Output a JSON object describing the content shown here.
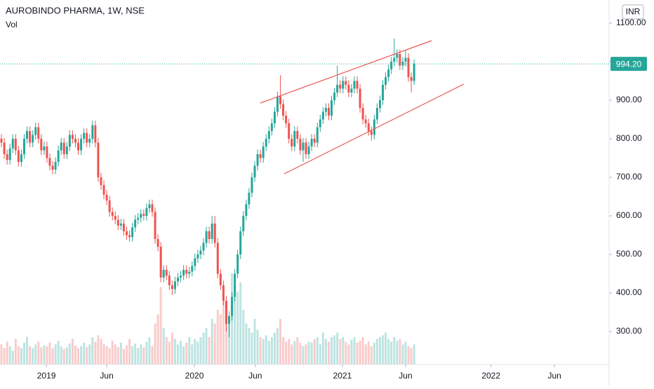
{
  "chart_data": {
    "type": "candlestick",
    "title": "AUROBINDO PHARMA, 1W, NSE",
    "subtitle": "Vol",
    "currency": "INR",
    "up_color": "#26a69a",
    "down_color": "#ef5350",
    "xlim": [
      -0.5,
      213.5
    ],
    "xticks": [
      {
        "value": 15.8,
        "label": "2019"
      },
      {
        "value": 37,
        "label": "Jun"
      },
      {
        "value": 67.8,
        "label": "2020"
      },
      {
        "value": 89.2,
        "label": "Jun"
      },
      {
        "value": 119.8,
        "label": "2021"
      },
      {
        "value": 142,
        "label": "Jun"
      },
      {
        "value": 172,
        "label": "2022"
      },
      {
        "value": 194.3,
        "label": "Jun"
      }
    ],
    "ylim": [
      214.5,
      1160
    ],
    "yticks": [
      {
        "value": 300,
        "label": "300.00"
      },
      {
        "value": 400,
        "label": "400.00"
      },
      {
        "value": 500,
        "label": "500.00"
      },
      {
        "value": 600,
        "label": "600.00"
      },
      {
        "value": 700,
        "label": "700.00"
      },
      {
        "value": 800,
        "label": "800.00"
      },
      {
        "value": 900,
        "label": "900.00"
      },
      {
        "value": 1000,
        "label": "1000.00"
      },
      {
        "value": 1100,
        "label": "1100.00"
      }
    ],
    "volume_lim": [
      0,
      100
    ],
    "last_label": "994.20",
    "x": [
      0,
      1,
      2,
      3,
      4,
      5,
      6,
      7,
      8,
      9,
      10,
      11,
      12,
      13,
      14,
      15,
      16,
      17,
      18,
      19,
      20,
      21,
      22,
      23,
      24,
      25,
      26,
      27,
      28,
      29,
      30,
      31,
      32,
      33,
      34,
      35,
      36,
      37,
      38,
      39,
      40,
      41,
      42,
      43,
      44,
      45,
      46,
      47,
      48,
      49,
      50,
      51,
      52,
      53,
      54,
      55,
      56,
      57,
      58,
      59,
      60,
      61,
      62,
      63,
      64,
      65,
      66,
      67,
      68,
      69,
      70,
      71,
      72,
      73,
      74,
      75,
      76,
      77,
      78,
      79,
      80,
      81,
      82,
      83,
      84,
      85,
      86,
      87,
      88,
      89,
      90,
      91,
      92,
      93,
      94,
      95,
      96,
      97,
      98,
      99,
      100,
      101,
      102,
      103,
      104,
      105,
      106,
      107,
      108,
      109,
      110,
      111,
      112,
      113,
      114,
      115,
      116,
      117,
      118,
      119,
      120,
      121,
      122,
      123,
      124,
      125,
      126,
      127,
      128,
      129,
      130,
      131,
      132,
      133,
      134,
      135,
      136,
      137,
      138,
      139,
      140,
      141,
      142,
      143,
      144,
      145
    ],
    "open": [
      800,
      790,
      760,
      745,
      775,
      800,
      770,
      740,
      760,
      800,
      820,
      790,
      810,
      830,
      800,
      770,
      780,
      750,
      730,
      720,
      740,
      770,
      790,
      760,
      780,
      810,
      800,
      790,
      770,
      800,
      815,
      790,
      800,
      835,
      790,
      700,
      680,
      655,
      640,
      610,
      600,
      590,
      575,
      580,
      560,
      550,
      545,
      570,
      590,
      595,
      605,
      600,
      620,
      630,
      610,
      540,
      520,
      440,
      460,
      445,
      420,
      410,
      430,
      440,
      445,
      460,
      450,
      455,
      470,
      490,
      500,
      510,
      530,
      560,
      540,
      580,
      530,
      450,
      420,
      380,
      320,
      340,
      390,
      450,
      500,
      560,
      600,
      630,
      660,
      700,
      730,
      760,
      750,
      780,
      800,
      820,
      840,
      870,
      910,
      890,
      860,
      840,
      800,
      780,
      820,
      800,
      770,
      790,
      760,
      780,
      800,
      790,
      830,
      850,
      870,
      880,
      860,
      900,
      920,
      940,
      930,
      950,
      940,
      920,
      930,
      950,
      930,
      880,
      850,
      840,
      820,
      810,
      850,
      880,
      900,
      940,
      960,
      980,
      1000,
      1010,
      1020,
      990,
      1000,
      1010,
      960,
      950
    ],
    "high": [
      812,
      802,
      772,
      787,
      812,
      812,
      782,
      772,
      812,
      832,
      832,
      822,
      842,
      842,
      812,
      792,
      792,
      762,
      742,
      752,
      782,
      802,
      802,
      792,
      822,
      822,
      812,
      802,
      812,
      827,
      827,
      812,
      847,
      847,
      802,
      712,
      692,
      667,
      652,
      622,
      612,
      602,
      592,
      592,
      572,
      562,
      582,
      602,
      607,
      617,
      617,
      632,
      642,
      642,
      622,
      552,
      532,
      472,
      472,
      457,
      432,
      442,
      452,
      457,
      472,
      472,
      467,
      482,
      502,
      512,
      522,
      542,
      572,
      572,
      600,
      600,
      542,
      462,
      432,
      392,
      352,
      402,
      462,
      512,
      572,
      612,
      642,
      672,
      712,
      742,
      772,
      772,
      792,
      812,
      832,
      852,
      882,
      922,
      965,
      902,
      872,
      852,
      812,
      832,
      832,
      812,
      802,
      802,
      792,
      812,
      812,
      842,
      862,
      882,
      892,
      892,
      912,
      932,
      990,
      952,
      962,
      962,
      952,
      942,
      962,
      962,
      942,
      892,
      862,
      852,
      832,
      862,
      892,
      912,
      952,
      972,
      992,
      1012,
      1060,
      1032,
      1032,
      1012,
      1030,
      1022,
      972,
      1006
    ],
    "low": [
      778,
      748,
      733,
      733,
      763,
      758,
      728,
      728,
      748,
      788,
      778,
      778,
      798,
      788,
      758,
      758,
      738,
      718,
      708,
      708,
      728,
      758,
      748,
      748,
      768,
      788,
      778,
      758,
      758,
      788,
      778,
      778,
      788,
      778,
      688,
      668,
      643,
      628,
      598,
      588,
      578,
      563,
      563,
      548,
      538,
      533,
      533,
      558,
      578,
      583,
      588,
      588,
      608,
      598,
      528,
      508,
      428,
      428,
      433,
      408,
      395,
      398,
      418,
      428,
      433,
      438,
      438,
      443,
      458,
      478,
      488,
      498,
      518,
      528,
      528,
      518,
      438,
      408,
      368,
      300,
      285,
      328,
      378,
      438,
      488,
      548,
      588,
      618,
      648,
      688,
      718,
      738,
      738,
      768,
      788,
      808,
      828,
      858,
      878,
      848,
      828,
      788,
      768,
      768,
      788,
      758,
      740,
      748,
      748,
      768,
      778,
      778,
      818,
      838,
      858,
      848,
      848,
      888,
      908,
      918,
      918,
      928,
      908,
      908,
      918,
      918,
      868,
      838,
      828,
      808,
      795,
      798,
      838,
      868,
      888,
      928,
      948,
      968,
      988,
      998,
      978,
      978,
      988,
      948,
      920,
      940
    ],
    "close": [
      790,
      760,
      745,
      775,
      800,
      770,
      740,
      760,
      800,
      820,
      790,
      810,
      830,
      800,
      770,
      780,
      750,
      730,
      720,
      740,
      770,
      790,
      760,
      780,
      810,
      800,
      790,
      770,
      800,
      815,
      790,
      800,
      835,
      790,
      700,
      680,
      655,
      640,
      610,
      600,
      590,
      575,
      580,
      560,
      550,
      545,
      570,
      590,
      595,
      605,
      600,
      620,
      630,
      610,
      540,
      520,
      440,
      460,
      445,
      420,
      410,
      430,
      440,
      445,
      460,
      450,
      455,
      470,
      490,
      500,
      510,
      530,
      560,
      540,
      580,
      530,
      450,
      420,
      380,
      320,
      340,
      390,
      450,
      500,
      560,
      600,
      630,
      660,
      700,
      730,
      760,
      750,
      780,
      800,
      820,
      840,
      870,
      910,
      890,
      860,
      840,
      800,
      780,
      820,
      800,
      770,
      790,
      760,
      780,
      800,
      790,
      830,
      850,
      870,
      880,
      860,
      900,
      920,
      940,
      930,
      950,
      940,
      920,
      930,
      950,
      930,
      880,
      850,
      840,
      820,
      810,
      850,
      880,
      900,
      940,
      960,
      980,
      1000,
      1010,
      1020,
      990,
      1000,
      1010,
      960,
      950,
      994.2
    ],
    "volume": [
      22,
      18,
      25,
      20,
      15,
      28,
      20,
      18,
      24,
      30,
      20,
      18,
      22,
      25,
      19,
      21,
      20,
      24,
      18,
      22,
      26,
      20,
      17,
      19,
      23,
      28,
      21,
      18,
      20,
      24,
      19,
      22,
      30,
      25,
      32,
      28,
      22,
      20,
      18,
      26,
      22,
      19,
      24,
      17,
      21,
      28,
      20,
      23,
      18,
      22,
      19,
      25,
      30,
      20,
      45,
      55,
      85,
      40,
      30,
      25,
      35,
      28,
      22,
      26,
      20,
      24,
      30,
      22,
      28,
      25,
      30,
      35,
      40,
      30,
      50,
      45,
      60,
      55,
      70,
      65,
      50,
      100,
      75,
      80,
      90,
      60,
      45,
      40,
      35,
      50,
      38,
      30,
      28,
      32,
      26,
      30,
      35,
      40,
      50,
      30,
      25,
      28,
      22,
      26,
      30,
      24,
      20,
      22,
      25,
      24,
      28,
      30,
      22,
      35,
      28,
      25,
      30,
      32,
      35,
      28,
      30,
      25,
      22,
      27,
      30,
      24,
      26,
      30,
      22,
      25,
      20,
      24,
      28,
      30,
      32,
      35,
      28,
      25,
      30,
      26,
      28,
      22,
      25,
      20,
      18,
      22
    ]
  }
}
